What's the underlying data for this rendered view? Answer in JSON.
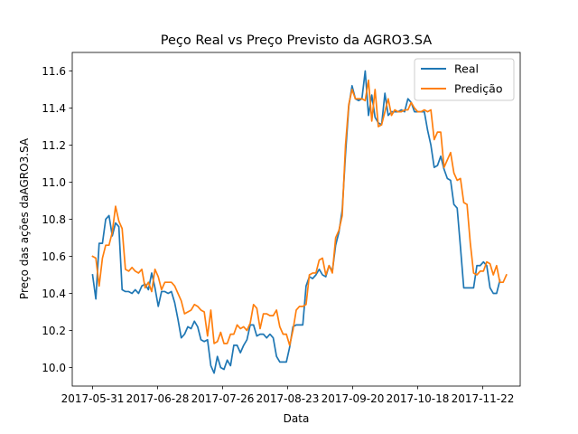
{
  "chart_data": {
    "type": "line",
    "title": "Peço Real vs Preço Previsto da AGRO3.SA",
    "xlabel": "Data",
    "ylabel": "Preço das ações daAGRO3.SA",
    "x_tick_labels": [
      "2017-05-31",
      "2017-06-28",
      "2017-07-26",
      "2017-08-23",
      "2017-09-20",
      "2017-10-18",
      "2017-11-22"
    ],
    "y_ticks": [
      10.0,
      10.2,
      10.4,
      10.6,
      10.8,
      11.0,
      11.2,
      11.4,
      11.6
    ],
    "ylim": [
      9.9,
      11.7
    ],
    "grid": false,
    "legend": "top-right",
    "series": [
      {
        "name": "Real",
        "color": "#1f77b4",
        "values": [
          10.5,
          10.37,
          10.67,
          10.67,
          10.8,
          10.82,
          10.71,
          10.78,
          10.76,
          10.42,
          10.41,
          10.41,
          10.4,
          10.42,
          10.4,
          10.44,
          10.45,
          10.42,
          10.51,
          10.43,
          10.33,
          10.41,
          10.41,
          10.4,
          10.41,
          10.35,
          10.26,
          10.16,
          10.18,
          10.22,
          10.21,
          10.25,
          10.22,
          10.15,
          10.14,
          10.15,
          10.01,
          9.97,
          10.06,
          10.0,
          9.99,
          10.04,
          10.01,
          10.12,
          10.12,
          10.08,
          10.12,
          10.15,
          10.23,
          10.23,
          10.17,
          10.18,
          10.18,
          10.16,
          10.18,
          10.16,
          10.06,
          10.03,
          10.03,
          10.03,
          10.11,
          10.22,
          10.23,
          10.23,
          10.23,
          10.44,
          10.49,
          10.48,
          10.5,
          10.53,
          10.5,
          10.49,
          10.55,
          10.52,
          10.66,
          10.73,
          10.85,
          11.15,
          11.41,
          11.52,
          11.45,
          11.44,
          11.45,
          11.6,
          11.36,
          11.47,
          11.35,
          11.32,
          11.31,
          11.48,
          11.36,
          11.38,
          11.38,
          11.38,
          11.39,
          11.38,
          11.45,
          11.43,
          11.38,
          11.38,
          11.38,
          11.38,
          11.28,
          11.2,
          11.08,
          11.09,
          11.14,
          11.07,
          11.02,
          11.01,
          10.88,
          10.86,
          10.65,
          10.43,
          10.43,
          10.43,
          10.43,
          10.55,
          10.55,
          10.57,
          10.55,
          10.43,
          10.4,
          10.4,
          10.47
        ]
      },
      {
        "name": "Predição",
        "color": "#ff7f0e",
        "values": [
          10.6,
          10.59,
          10.44,
          10.59,
          10.66,
          10.66,
          10.73,
          10.87,
          10.79,
          10.75,
          10.53,
          10.52,
          10.54,
          10.52,
          10.51,
          10.53,
          10.43,
          10.46,
          10.41,
          10.53,
          10.49,
          10.42,
          10.46,
          10.46,
          10.46,
          10.44,
          10.4,
          10.36,
          10.29,
          10.3,
          10.31,
          10.34,
          10.33,
          10.31,
          10.3,
          10.17,
          10.31,
          10.13,
          10.14,
          10.19,
          10.13,
          10.13,
          10.18,
          10.18,
          10.23,
          10.21,
          10.22,
          10.2,
          10.24,
          10.34,
          10.32,
          10.21,
          10.29,
          10.29,
          10.28,
          10.28,
          10.31,
          10.22,
          10.18,
          10.18,
          10.12,
          10.2,
          10.31,
          10.33,
          10.33,
          10.34,
          10.5,
          10.51,
          10.51,
          10.58,
          10.59,
          10.5,
          10.55,
          10.51,
          10.7,
          10.74,
          10.82,
          11.2,
          11.42,
          11.5,
          11.45,
          11.45,
          11.45,
          11.44,
          11.55,
          11.33,
          11.5,
          11.3,
          11.31,
          11.38,
          11.45,
          11.36,
          11.39,
          11.38,
          11.38,
          11.39,
          11.39,
          11.43,
          11.4,
          11.38,
          11.38,
          11.39,
          11.38,
          11.39,
          11.23,
          11.27,
          11.27,
          11.08,
          11.12,
          11.16,
          11.05,
          11.01,
          11.02,
          10.89,
          10.88,
          10.67,
          10.51,
          10.5,
          10.52,
          10.52,
          10.57,
          10.56,
          10.5,
          10.55,
          10.46,
          10.46,
          10.5
        ]
      }
    ]
  }
}
